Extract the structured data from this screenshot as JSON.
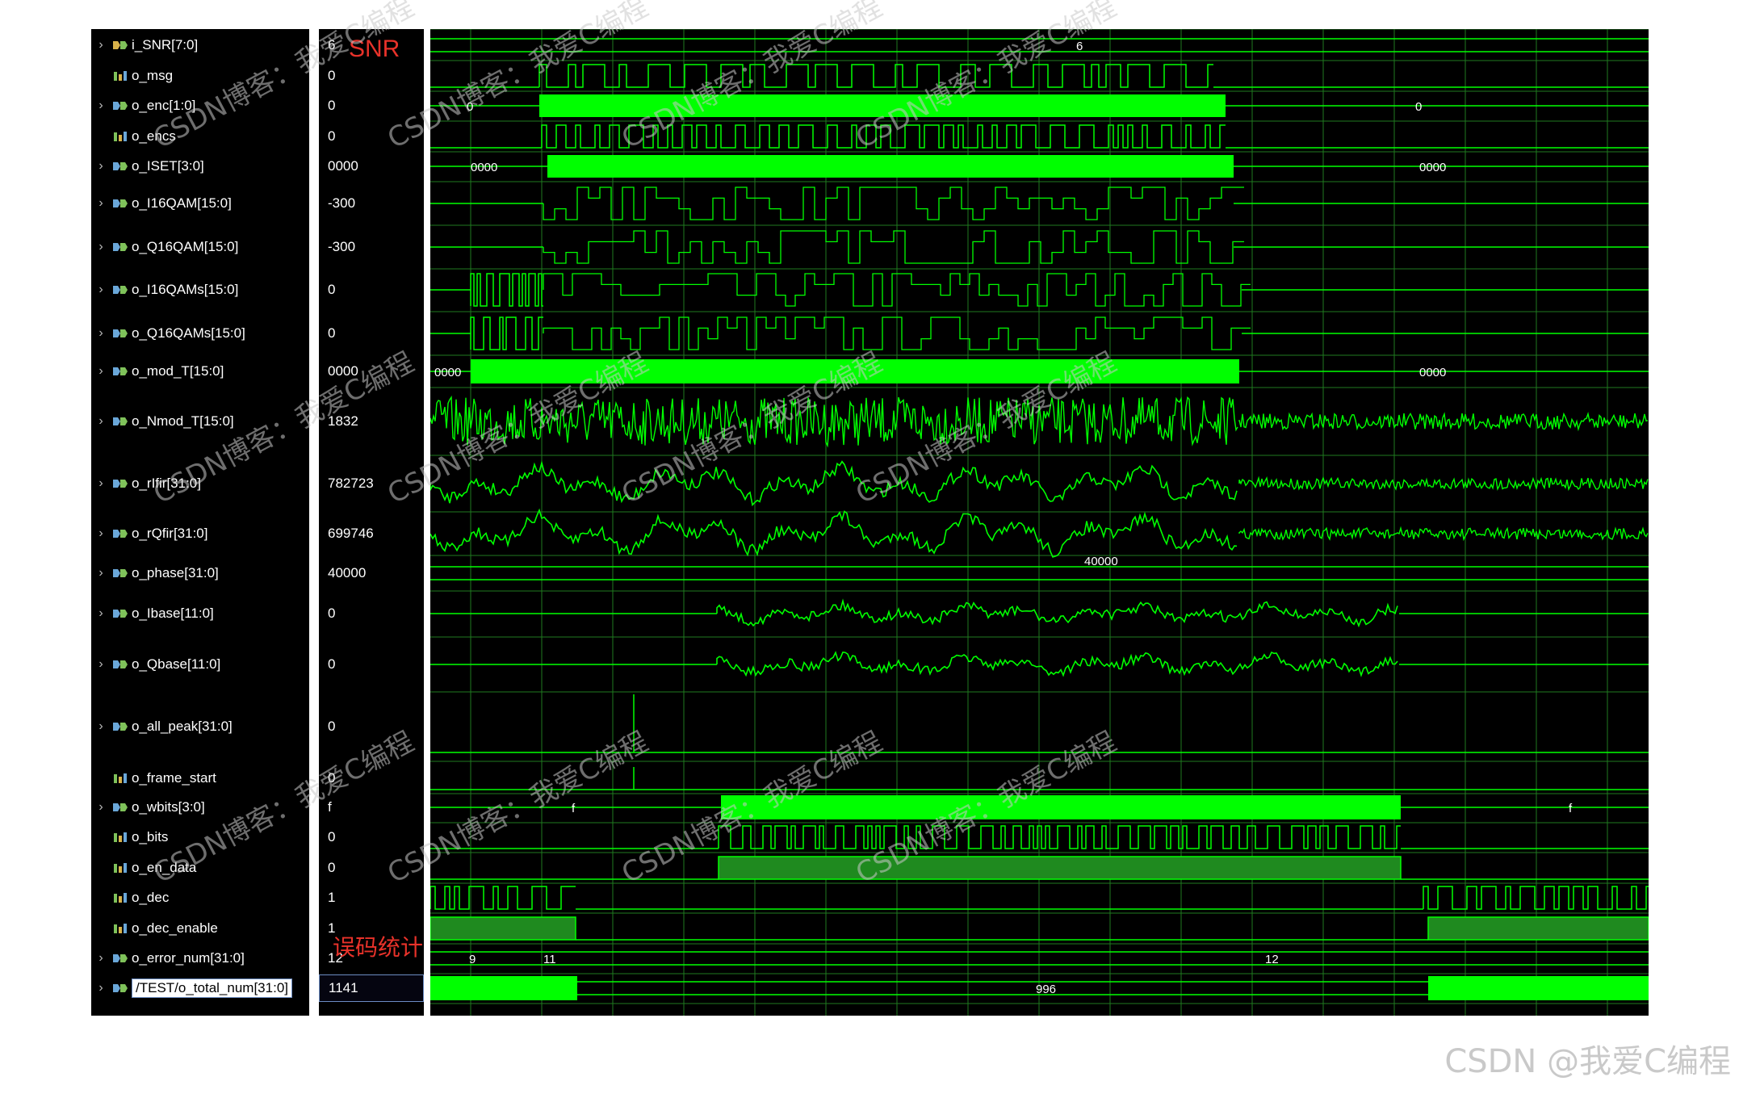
{
  "signals": [
    {
      "name": "i_SNR[7:0]",
      "value": "6",
      "bus": true,
      "icon": "input-bus-icon"
    },
    {
      "name": "o_msg",
      "value": "0",
      "bus": false,
      "icon": "bit-signal-icon"
    },
    {
      "name": "o_enc[1:0]",
      "value": "0",
      "bus": true,
      "icon": "output-bus-icon"
    },
    {
      "name": "o_encs",
      "value": "0",
      "bus": false,
      "icon": "bit-signal-icon"
    },
    {
      "name": "o_ISET[3:0]",
      "value": "0000",
      "bus": true,
      "icon": "output-bus-icon"
    },
    {
      "name": "o_I16QAM[15:0]",
      "value": "-300",
      "bus": true,
      "icon": "output-bus-icon"
    },
    {
      "name": "o_Q16QAM[15:0]",
      "value": "-300",
      "bus": true,
      "icon": "output-bus-icon"
    },
    {
      "name": "o_I16QAMs[15:0]",
      "value": "0",
      "bus": true,
      "icon": "output-bus-icon"
    },
    {
      "name": "o_Q16QAMs[15:0]",
      "value": "0",
      "bus": true,
      "icon": "output-bus-icon"
    },
    {
      "name": "o_mod_T[15:0]",
      "value": "0000",
      "bus": true,
      "icon": "output-bus-icon"
    },
    {
      "name": "o_Nmod_T[15:0]",
      "value": "1832",
      "bus": true,
      "icon": "output-bus-icon"
    },
    {
      "name": "o_rIfir[31:0]",
      "value": "782723",
      "bus": true,
      "icon": "output-bus-icon"
    },
    {
      "name": "o_rQfir[31:0]",
      "value": "699746",
      "bus": true,
      "icon": "output-bus-icon"
    },
    {
      "name": "o_phase[31:0]",
      "value": "40000",
      "bus": true,
      "icon": "output-bus-icon"
    },
    {
      "name": "o_Ibase[11:0]",
      "value": "0",
      "bus": true,
      "icon": "output-bus-icon"
    },
    {
      "name": "o_Qbase[11:0]",
      "value": "0",
      "bus": true,
      "icon": "output-bus-icon"
    },
    {
      "name": "o_all_peak[31:0]",
      "value": "0",
      "bus": true,
      "icon": "output-bus-icon"
    },
    {
      "name": "o_frame_start",
      "value": "0",
      "bus": false,
      "icon": "bit-signal-icon"
    },
    {
      "name": "o_wbits[3:0]",
      "value": "f",
      "bus": true,
      "icon": "output-bus-icon"
    },
    {
      "name": "o_bits",
      "value": "0",
      "bus": false,
      "icon": "bit-signal-icon"
    },
    {
      "name": "o_en_data",
      "value": "0",
      "bus": false,
      "icon": "bit-signal-icon"
    },
    {
      "name": "o_dec",
      "value": "1",
      "bus": false,
      "icon": "bit-signal-icon"
    },
    {
      "name": "o_dec_enable",
      "value": "1",
      "bus": false,
      "icon": "bit-signal-icon"
    },
    {
      "name": "o_error_num[31:0]",
      "value": "12",
      "bus": true,
      "icon": "output-bus-icon"
    },
    {
      "name": "/TEST/o_total_num[31:0]",
      "value": "1141",
      "bus": true,
      "icon": "output-bus-icon",
      "selected": true
    }
  ],
  "wave_labels": {
    "snr_value": "6",
    "enc_start": "0",
    "enc_end": "0",
    "iset_start": "0000",
    "iset_end": "0000",
    "mod_start": "0000",
    "mod_end": "0000",
    "phase_value": "40000",
    "wbits_start": "f",
    "wbits_end": "f",
    "err_a": "9",
    "err_b": "11",
    "err_c": "12",
    "total_mid": "996"
  },
  "annotations": {
    "snr": "SNR",
    "error_stats": "误码统计"
  },
  "watermark": "CSDN博客：我爱C编程",
  "footer_brand": "CSDN @我爱C编程",
  "colors": {
    "wave": "#00ff00",
    "grid": "#1f7a1f",
    "background": "#000000"
  }
}
